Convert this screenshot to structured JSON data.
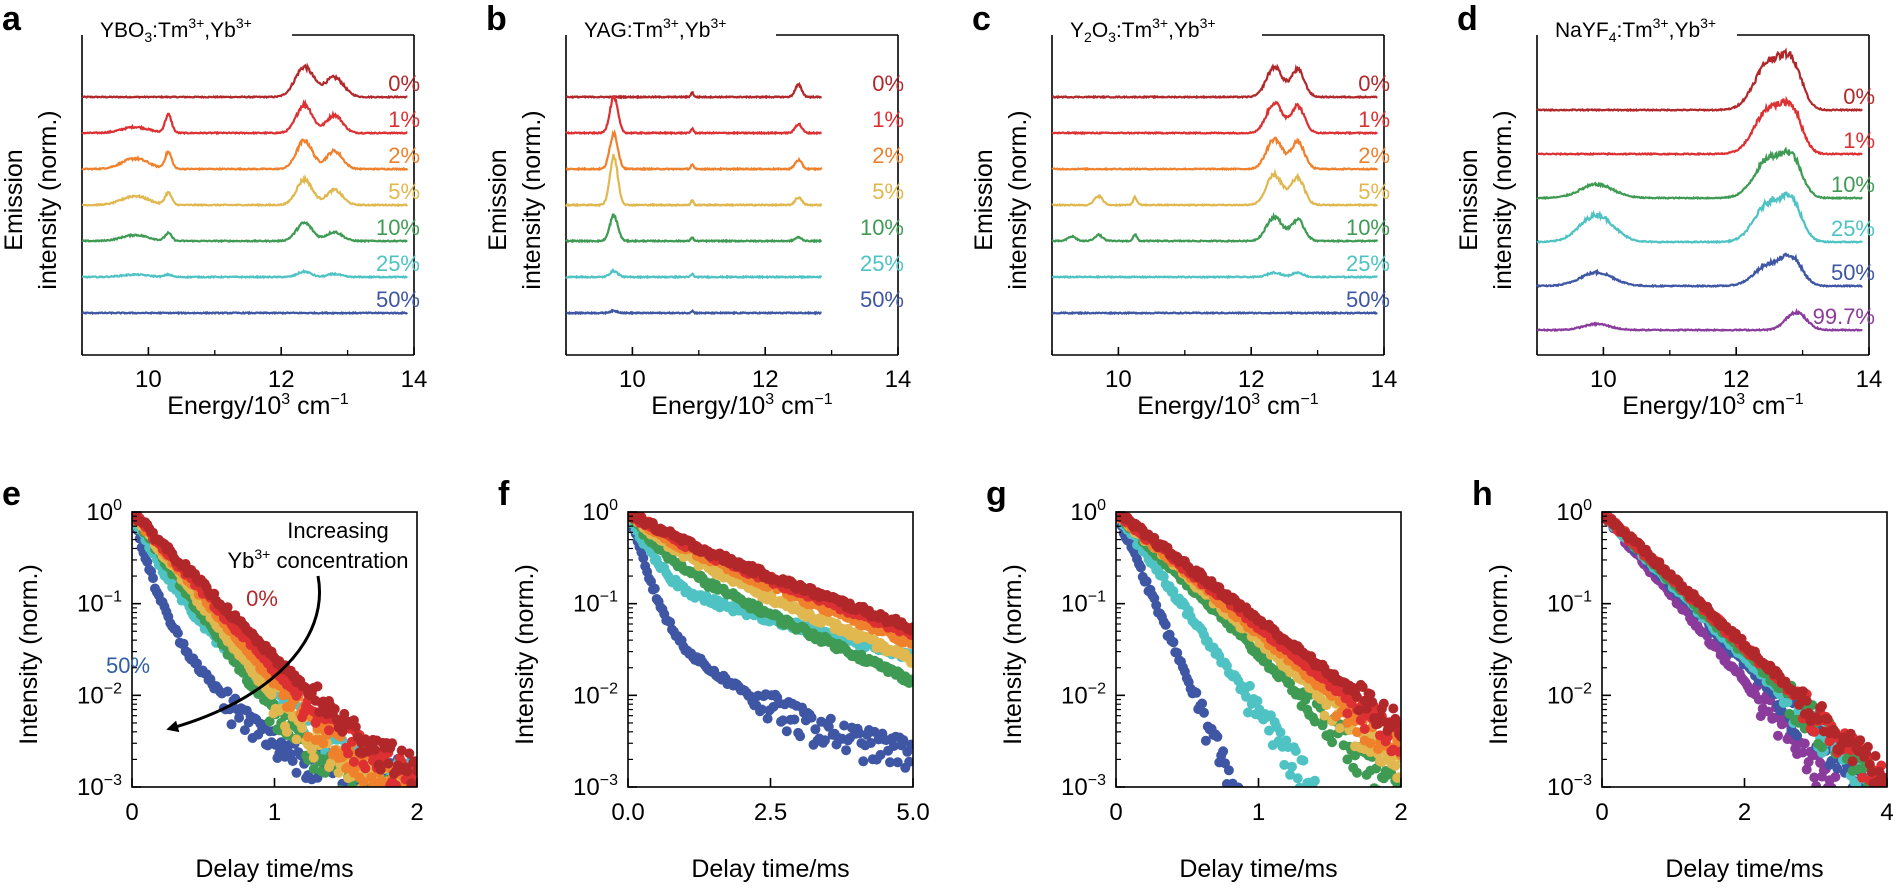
{
  "figure": {
    "top_panels": [
      {
        "letter": "a",
        "title": {
          "main": "YBO",
          "sub": "3",
          "rest": ":Tm",
          "sup1": "3+",
          "sep": ",Yb",
          "sup2": "3+"
        },
        "xlabel": {
          "pre": "Energy/10",
          "sup": "3",
          "post": " cm",
          "sup2": "−1"
        },
        "ylabel_line1": "Emission",
        "ylabel_line2": "intensity (norm.)",
        "xlim": [
          9,
          14
        ],
        "xticks": [
          "10",
          "12",
          "14"
        ],
        "tick_values": [
          10,
          12,
          14
        ]
      },
      {
        "letter": "b",
        "title": {
          "main": "YAG",
          "sub": "",
          "rest": ":Tm",
          "sup1": "3+",
          "sep": ",Yb",
          "sup2": "3+"
        },
        "xlabel": {
          "pre": "Energy/10",
          "sup": "3",
          "post": " cm",
          "sup2": "−1"
        },
        "ylabel_line1": "Emission",
        "ylabel_line2": "intensity (norm.)",
        "xlim": [
          9,
          14
        ],
        "xticks": [
          "10",
          "12",
          "14"
        ],
        "tick_values": [
          10,
          12,
          14
        ]
      },
      {
        "letter": "c",
        "title": {
          "main": "Y",
          "sub": "2",
          "rest": "O",
          "sub2": "3",
          "rest2": ":Tm",
          "sup1": "3+",
          "sep": ",Yb",
          "sup2": "3+"
        },
        "xlabel": {
          "pre": "Energy/10",
          "sup": "3",
          "post": " cm",
          "sup2": "−1"
        },
        "ylabel_line1": "Emission",
        "ylabel_line2": "intensity (norm.)",
        "xlim": [
          9,
          14
        ],
        "xticks": [
          "10",
          "12",
          "14"
        ],
        "tick_values": [
          10,
          12,
          14
        ]
      },
      {
        "letter": "d",
        "title": {
          "main": "NaYF",
          "sub": "4",
          "rest": ":Tm",
          "sup1": "3+",
          "sep": ",Yb",
          "sup2": "3+"
        },
        "xlabel": {
          "pre": "Energy/10",
          "sup": "3",
          "post": " cm",
          "sup2": "−1"
        },
        "ylabel_line1": "Emission",
        "ylabel_line2": "intensity (norm.)",
        "xlim": [
          9,
          14
        ],
        "xticks": [
          "10",
          "12",
          "14"
        ],
        "tick_values": [
          10,
          12,
          14
        ]
      }
    ],
    "bottom_panels": [
      {
        "letter": "e",
        "xlabel": "Delay time/ms",
        "ylabel": "Intensity (norm.)",
        "xlim": [
          0,
          2
        ],
        "xticks": [
          "0",
          "1",
          "2"
        ],
        "tick_values": [
          0,
          1,
          2
        ]
      },
      {
        "letter": "f",
        "xlabel": "Delay time/ms",
        "ylabel": "Intensity (norm.)",
        "xlim": [
          0,
          5
        ],
        "xticks": [
          "0.0",
          "2.5",
          "5.0"
        ],
        "tick_values": [
          0,
          2.5,
          5
        ]
      },
      {
        "letter": "g",
        "xlabel": "Delay time/ms",
        "ylabel": "Intensity (norm.)",
        "xlim": [
          0,
          2
        ],
        "xticks": [
          "0",
          "1",
          "2"
        ],
        "tick_values": [
          0,
          1,
          2
        ]
      },
      {
        "letter": "h",
        "xlabel": "Delay time/ms",
        "ylabel": "Intensity (norm.)",
        "xlim": [
          0,
          4
        ],
        "xticks": [
          "0",
          "2",
          "4"
        ],
        "tick_values": [
          0,
          2,
          4
        ]
      }
    ],
    "log_ticks": [
      {
        "base": "10",
        "exp": "0"
      },
      {
        "base": "10",
        "exp": "−1"
      },
      {
        "base": "10",
        "exp": "−2"
      },
      {
        "base": "10",
        "exp": "−3"
      }
    ],
    "annotation_e": {
      "line1": "Increasing",
      "line2_pre": "Yb",
      "line2_sup": "3+",
      "line2_post": " concentration",
      "label_low": "0%",
      "label_high": "50%"
    },
    "colors": {
      "0%": "#b2282a",
      "1%": "#dc3033",
      "2%": "#f0812c",
      "5%": "#e0b84f",
      "10%": "#3f9b54",
      "25%": "#4fc3c3",
      "50%": "#3e56a3",
      "99.7%": "#8a3b9c"
    }
  },
  "chart_data": [
    {
      "type": "line",
      "panel": "a",
      "title": "YBO3:Tm3+,Yb3+",
      "xlabel": "Energy/10^3 cm^-1",
      "ylabel": "Emission intensity (norm.)",
      "xlim": [
        9,
        14
      ],
      "x_range": [
        9.0,
        13.9
      ],
      "offset_spacing": 1.0,
      "series": [
        {
          "name": "0%",
          "peaks": [
            [
              12.35,
              1.0,
              0.14
            ],
            [
              12.8,
              0.65,
              0.14
            ]
          ]
        },
        {
          "name": "1%",
          "peaks": [
            [
              9.8,
              0.2,
              0.2
            ],
            [
              10.3,
              0.6,
              0.05
            ],
            [
              12.35,
              0.95,
              0.12
            ],
            [
              12.8,
              0.6,
              0.12
            ]
          ]
        },
        {
          "name": "2%",
          "peaks": [
            [
              9.8,
              0.35,
              0.2
            ],
            [
              10.3,
              0.55,
              0.05
            ],
            [
              12.35,
              0.95,
              0.12
            ],
            [
              12.8,
              0.6,
              0.12
            ]
          ]
        },
        {
          "name": "5%",
          "peaks": [
            [
              9.8,
              0.3,
              0.2
            ],
            [
              10.3,
              0.4,
              0.05
            ],
            [
              12.35,
              0.85,
              0.12
            ],
            [
              12.8,
              0.5,
              0.12
            ]
          ]
        },
        {
          "name": "10%",
          "peaks": [
            [
              9.8,
              0.2,
              0.2
            ],
            [
              10.3,
              0.25,
              0.05
            ],
            [
              12.35,
              0.6,
              0.12
            ],
            [
              12.8,
              0.3,
              0.12
            ]
          ]
        },
        {
          "name": "25%",
          "peaks": [
            [
              9.8,
              0.08,
              0.2
            ],
            [
              10.3,
              0.08,
              0.05
            ],
            [
              12.35,
              0.18,
              0.1
            ],
            [
              12.8,
              0.1,
              0.1
            ]
          ]
        },
        {
          "name": "50%",
          "peaks": []
        }
      ]
    },
    {
      "type": "line",
      "panel": "b",
      "title": "YAG:Tm3+,Yb3+",
      "xlabel": "Energy/10^3 cm^-1",
      "ylabel": "Emission intensity (norm.)",
      "xlim": [
        9,
        14
      ],
      "x_range": [
        9.0,
        12.85
      ],
      "offset_spacing": 1.0,
      "series": [
        {
          "name": "0%",
          "peaks": [
            [
              10.9,
              0.15,
              0.02
            ],
            [
              12.5,
              0.4,
              0.05
            ]
          ]
        },
        {
          "name": "1%",
          "peaks": [
            [
              9.72,
              1.2,
              0.06
            ],
            [
              10.9,
              0.15,
              0.02
            ],
            [
              12.5,
              0.3,
              0.05
            ]
          ]
        },
        {
          "name": "2%",
          "peaks": [
            [
              9.72,
              1.2,
              0.06
            ],
            [
              10.9,
              0.15,
              0.02
            ],
            [
              12.5,
              0.3,
              0.05
            ]
          ]
        },
        {
          "name": "5%",
          "peaks": [
            [
              9.72,
              1.6,
              0.06
            ],
            [
              10.9,
              0.15,
              0.02
            ],
            [
              12.5,
              0.25,
              0.05
            ]
          ]
        },
        {
          "name": "10%",
          "peaks": [
            [
              9.72,
              0.85,
              0.06
            ],
            [
              10.9,
              0.12,
              0.02
            ],
            [
              12.5,
              0.12,
              0.05
            ]
          ]
        },
        {
          "name": "25%",
          "peaks": [
            [
              9.72,
              0.2,
              0.06
            ],
            [
              10.9,
              0.1,
              0.02
            ]
          ]
        },
        {
          "name": "50%",
          "peaks": [
            [
              9.72,
              0.07,
              0.06
            ],
            [
              10.9,
              0.07,
              0.02
            ]
          ]
        }
      ]
    },
    {
      "type": "line",
      "panel": "c",
      "title": "Y2O3:Tm3+,Yb3+",
      "xlabel": "Energy/10^3 cm^-1",
      "ylabel": "Emission intensity (norm.)",
      "xlim": [
        9,
        14
      ],
      "x_range": [
        9.0,
        13.9
      ],
      "offset_spacing": 1.0,
      "series": [
        {
          "name": "0%",
          "peaks": [
            [
              12.35,
              1.0,
              0.12
            ],
            [
              12.7,
              0.9,
              0.1
            ]
          ]
        },
        {
          "name": "1%",
          "peaks": [
            [
              12.35,
              1.0,
              0.12
            ],
            [
              12.7,
              0.9,
              0.1
            ]
          ]
        },
        {
          "name": "2%",
          "peaks": [
            [
              12.35,
              1.0,
              0.12
            ],
            [
              12.7,
              0.9,
              0.1
            ]
          ]
        },
        {
          "name": "5%",
          "peaks": [
            [
              9.7,
              0.3,
              0.06
            ],
            [
              10.25,
              0.25,
              0.03
            ],
            [
              12.35,
              1.0,
              0.12
            ],
            [
              12.7,
              0.9,
              0.1
            ]
          ]
        },
        {
          "name": "10%",
          "peaks": [
            [
              9.3,
              0.15,
              0.06
            ],
            [
              9.7,
              0.2,
              0.06
            ],
            [
              10.25,
              0.2,
              0.03
            ],
            [
              12.35,
              0.8,
              0.12
            ],
            [
              12.7,
              0.7,
              0.1
            ]
          ]
        },
        {
          "name": "25%",
          "peaks": [
            [
              12.35,
              0.15,
              0.1
            ],
            [
              12.7,
              0.15,
              0.08
            ]
          ]
        },
        {
          "name": "50%",
          "peaks": []
        }
      ]
    },
    {
      "type": "line",
      "panel": "d",
      "title": "NaYF4:Tm3+,Yb3+",
      "xlabel": "Energy/10^3 cm^-1",
      "ylabel": "Emission intensity (norm.)",
      "xlim": [
        9,
        14
      ],
      "x_range": [
        9.0,
        13.9
      ],
      "offset_spacing": 1.0,
      "series": [
        {
          "name": "0%",
          "peaks": [
            [
              12.5,
              1.6,
              0.22
            ],
            [
              12.85,
              1.3,
              0.15
            ]
          ]
        },
        {
          "name": "1%",
          "peaks": [
            [
              12.5,
              1.5,
              0.22
            ],
            [
              12.85,
              1.2,
              0.15
            ]
          ]
        },
        {
          "name": "10%",
          "peaks": [
            [
              9.9,
              0.45,
              0.25
            ],
            [
              12.5,
              1.3,
              0.22
            ],
            [
              12.85,
              1.1,
              0.15
            ]
          ]
        },
        {
          "name": "25%",
          "peaks": [
            [
              9.9,
              0.9,
              0.25
            ],
            [
              12.5,
              1.3,
              0.22
            ],
            [
              12.85,
              1.1,
              0.15
            ]
          ]
        },
        {
          "name": "50%",
          "peaks": [
            [
              9.9,
              0.45,
              0.25
            ],
            [
              12.5,
              0.7,
              0.22
            ],
            [
              12.85,
              0.8,
              0.15
            ]
          ]
        },
        {
          "name": "99.7%",
          "peaks": [
            [
              9.9,
              0.2,
              0.2
            ],
            [
              12.9,
              0.6,
              0.15
            ]
          ]
        }
      ]
    },
    {
      "type": "scatter",
      "panel": "e",
      "xlabel": "Delay time/ms",
      "ylabel": "Intensity (norm.)",
      "xlim": [
        0,
        2
      ],
      "ylim": [
        0.001,
        1
      ],
      "yscale": "log",
      "series": [
        {
          "name": "0%",
          "tau1": 0.27,
          "a1": 1.0,
          "tau2": 0.27,
          "a2": 0.0,
          "floor": 0.001
        },
        {
          "name": "1%",
          "tau1": 0.25,
          "a1": 1.0,
          "tau2": 0.25,
          "a2": 0.0,
          "floor": 0.001
        },
        {
          "name": "2%",
          "tau1": 0.23,
          "a1": 1.0,
          "tau2": 0.23,
          "a2": 0.0,
          "floor": 0.001
        },
        {
          "name": "5%",
          "tau1": 0.21,
          "a1": 1.0,
          "tau2": 0.21,
          "a2": 0.0,
          "floor": 0.001
        },
        {
          "name": "10%",
          "tau1": 0.19,
          "a1": 1.0,
          "tau2": 0.19,
          "a2": 0.0,
          "floor": 0.001
        },
        {
          "name": "25%",
          "tau1": 0.11,
          "a1": 0.7,
          "tau2": 0.28,
          "a2": 0.3,
          "floor": 0.0012
        },
        {
          "name": "50%",
          "tau1": 0.07,
          "a1": 0.85,
          "tau2": 0.22,
          "a2": 0.15,
          "floor": 0.0015
        }
      ]
    },
    {
      "type": "scatter",
      "panel": "f",
      "xlabel": "Delay time/ms",
      "ylabel": "Intensity (norm.)",
      "xlim": [
        0,
        5
      ],
      "ylim": [
        0.001,
        1
      ],
      "yscale": "log",
      "series": [
        {
          "name": "0%",
          "tau1": 0.6,
          "a1": 0.3,
          "tau2": 1.95,
          "a2": 0.7,
          "floor": 0.0
        },
        {
          "name": "1%",
          "tau1": 0.55,
          "a1": 0.3,
          "tau2": 1.85,
          "a2": 0.7,
          "floor": 0.0
        },
        {
          "name": "2%",
          "tau1": 0.5,
          "a1": 0.35,
          "tau2": 1.75,
          "a2": 0.65,
          "floor": 0.0
        },
        {
          "name": "5%",
          "tau1": 0.45,
          "a1": 0.45,
          "tau2": 1.6,
          "a2": 0.55,
          "floor": 0.0
        },
        {
          "name": "10%",
          "tau1": 0.35,
          "a1": 0.6,
          "tau2": 1.5,
          "a2": 0.4,
          "floor": 0.0
        },
        {
          "name": "25%",
          "tau1": 0.28,
          "a1": 0.82,
          "tau2": 2.6,
          "a2": 0.18,
          "floor": 0.0
        },
        {
          "name": "50%",
          "tau1": 0.2,
          "a1": 0.93,
          "tau2": 1.0,
          "a2": 0.07,
          "floor": 0.002
        }
      ]
    },
    {
      "type": "scatter",
      "panel": "g",
      "xlabel": "Delay time/ms",
      "ylabel": "Intensity (norm.)",
      "xlim": [
        0,
        2
      ],
      "ylim": [
        0.001,
        1
      ],
      "yscale": "log",
      "series": [
        {
          "name": "0%",
          "tau1": 0.37,
          "a1": 1.0,
          "tau2": 0.37,
          "a2": 0.0,
          "floor": 0.0
        },
        {
          "name": "1%",
          "tau1": 0.35,
          "a1": 1.0,
          "tau2": 0.35,
          "a2": 0.0,
          "floor": 0.0
        },
        {
          "name": "2%",
          "tau1": 0.33,
          "a1": 1.0,
          "tau2": 0.33,
          "a2": 0.0,
          "floor": 0.0
        },
        {
          "name": "5%",
          "tau1": 0.31,
          "a1": 1.0,
          "tau2": 0.31,
          "a2": 0.0,
          "floor": 0.0
        },
        {
          "name": "10%",
          "tau1": 0.28,
          "a1": 1.0,
          "tau2": 0.28,
          "a2": 0.0,
          "floor": 0.0
        },
        {
          "name": "25%",
          "tau1": 0.2,
          "a1": 1.0,
          "tau2": 0.2,
          "a2": 0.0,
          "floor": 0.0
        },
        {
          "name": "50%",
          "tau1": 0.12,
          "a1": 1.0,
          "tau2": 0.12,
          "a2": 0.0,
          "floor": 0.0
        }
      ]
    },
    {
      "type": "scatter",
      "panel": "h",
      "xlabel": "Delay time/ms",
      "ylabel": "Intensity (norm.)",
      "xlim": [
        0,
        4
      ],
      "ylim": [
        0.001,
        1
      ],
      "yscale": "log",
      "series": [
        {
          "name": "0%",
          "tau1": 0.6,
          "a1": 1.0,
          "tau2": 0.6,
          "a2": 0.0,
          "floor": 0.0
        },
        {
          "name": "1%",
          "tau1": 0.59,
          "a1": 1.0,
          "tau2": 0.59,
          "a2": 0.0,
          "floor": 0.0
        },
        {
          "name": "10%",
          "tau1": 0.57,
          "a1": 1.0,
          "tau2": 0.57,
          "a2": 0.0,
          "floor": 0.0
        },
        {
          "name": "25%",
          "tau1": 0.55,
          "a1": 1.0,
          "tau2": 0.55,
          "a2": 0.0,
          "floor": 0.0
        },
        {
          "name": "50%",
          "tau1": 0.53,
          "a1": 1.0,
          "tau2": 0.53,
          "a2": 0.0,
          "floor": 0.0
        },
        {
          "name": "99.7%",
          "tau1": 0.47,
          "a1": 1.0,
          "tau2": 0.47,
          "a2": 0.0,
          "floor": 0.0
        }
      ]
    }
  ]
}
